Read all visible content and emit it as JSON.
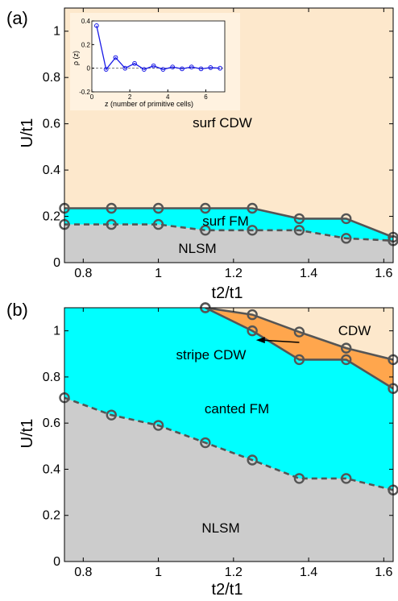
{
  "chart_data": [
    {
      "type": "area",
      "panel_label": "(a)",
      "xlabel": "t2/t1",
      "ylabel": "U/t1",
      "xlim": [
        0.75,
        1.625
      ],
      "ylim": [
        0,
        1.1
      ],
      "x_ticks": [
        "0.8",
        "1",
        "1.2",
        "1.4",
        "1.6"
      ],
      "y_ticks": [
        "0",
        "0.2",
        "0.4",
        "0.6",
        "0.8",
        "1"
      ],
      "region_labels": [
        "surf CDW",
        "surf FM",
        "NLSM"
      ],
      "colors": {
        "surf_CDW": "#fde8cc",
        "surf_FM": "#00ffff",
        "NLSM": "#cccccc"
      },
      "series": [
        {
          "boundary": "surf CDW / surf FM",
          "line_style": "solid",
          "x": [
            0.75,
            0.875,
            1.0,
            1.125,
            1.25,
            1.375,
            1.5,
            1.625
          ],
          "y": [
            0.235,
            0.235,
            0.235,
            0.235,
            0.235,
            0.19,
            0.19,
            0.11
          ]
        },
        {
          "boundary": "surf FM / NLSM",
          "line_style": "dashed",
          "x": [
            0.75,
            0.875,
            1.0,
            1.125,
            1.25,
            1.375,
            1.5,
            1.625
          ],
          "y": [
            0.165,
            0.165,
            0.165,
            0.14,
            0.14,
            0.14,
            0.105,
            0.095
          ]
        }
      ],
      "inset": {
        "type": "line",
        "xlabel": "z (number of primitive cells)",
        "ylabel": "ρ (z)",
        "xlim": [
          0,
          7
        ],
        "ylim": [
          -0.2,
          0.4
        ],
        "x_ticks": [
          "0",
          "2",
          "4",
          "6"
        ],
        "y_ticks": [
          "-0.2",
          "0",
          "0.2",
          "0.4"
        ],
        "x": [
          0.25,
          0.75,
          1.25,
          1.75,
          2.25,
          2.75,
          3.25,
          3.75,
          4.25,
          4.75,
          5.25,
          5.75,
          6.25,
          6.75
        ],
        "y": [
          0.36,
          -0.01,
          0.09,
          0.0,
          0.04,
          -0.01,
          0.02,
          -0.01,
          0.01,
          -0.005,
          0.01,
          -0.005,
          0.005,
          0.0
        ]
      }
    },
    {
      "type": "area",
      "panel_label": "(b)",
      "xlabel": "t2/t1",
      "ylabel": "U/t1",
      "xlim": [
        0.75,
        1.625
      ],
      "ylim": [
        0,
        1.1
      ],
      "x_ticks": [
        "0.8",
        "1",
        "1.2",
        "1.4",
        "1.6"
      ],
      "y_ticks": [
        "0",
        "0.2",
        "0.4",
        "0.6",
        "0.8",
        "1"
      ],
      "region_labels": [
        "CDW",
        "stripe CDW",
        "canted FM",
        "NLSM"
      ],
      "colors": {
        "CDW": "#fde8cc",
        "stripe_CDW": "#ffa64d",
        "canted_FM": "#00ffff",
        "NLSM": "#cccccc"
      },
      "series": [
        {
          "boundary": "CDW / stripe CDW",
          "line_style": "solid",
          "x": [
            1.125,
            1.25,
            1.375,
            1.5,
            1.625
          ],
          "y": [
            1.1,
            1.07,
            0.995,
            0.925,
            0.875
          ]
        },
        {
          "boundary": "stripe CDW / canted FM",
          "line_style": "solid",
          "x": [
            1.125,
            1.25,
            1.375,
            1.5,
            1.625
          ],
          "y": [
            1.1,
            1.0,
            0.875,
            0.875,
            0.75
          ]
        },
        {
          "boundary": "canted FM / NLSM",
          "line_style": "dashed",
          "x": [
            0.75,
            0.875,
            1.0,
            1.125,
            1.25,
            1.375,
            1.5,
            1.625
          ],
          "y": [
            0.71,
            0.635,
            0.59,
            0.515,
            0.44,
            0.36,
            0.36,
            0.31
          ]
        }
      ]
    }
  ]
}
